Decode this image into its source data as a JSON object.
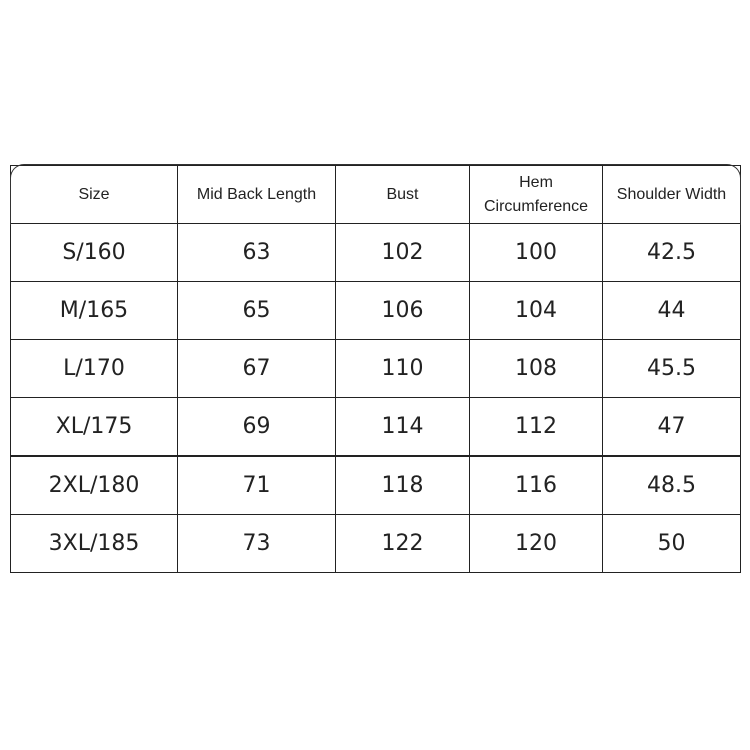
{
  "table": {
    "headers": [
      "Size",
      "Mid Back Length",
      "Bust",
      "Hem Circumference",
      "Shoulder Width"
    ],
    "rows": [
      [
        "S/160",
        "63",
        "102",
        "100",
        "42.5"
      ],
      [
        "M/165",
        "65",
        "106",
        "104",
        "44"
      ],
      [
        "L/170",
        "67",
        "110",
        "108",
        "45.5"
      ],
      [
        "XL/175",
        "69",
        "114",
        "112",
        "47"
      ],
      [
        "2XL/180",
        "71",
        "118",
        "116",
        "48.5"
      ],
      [
        "3XL/185",
        "73",
        "122",
        "120",
        "50"
      ]
    ]
  }
}
